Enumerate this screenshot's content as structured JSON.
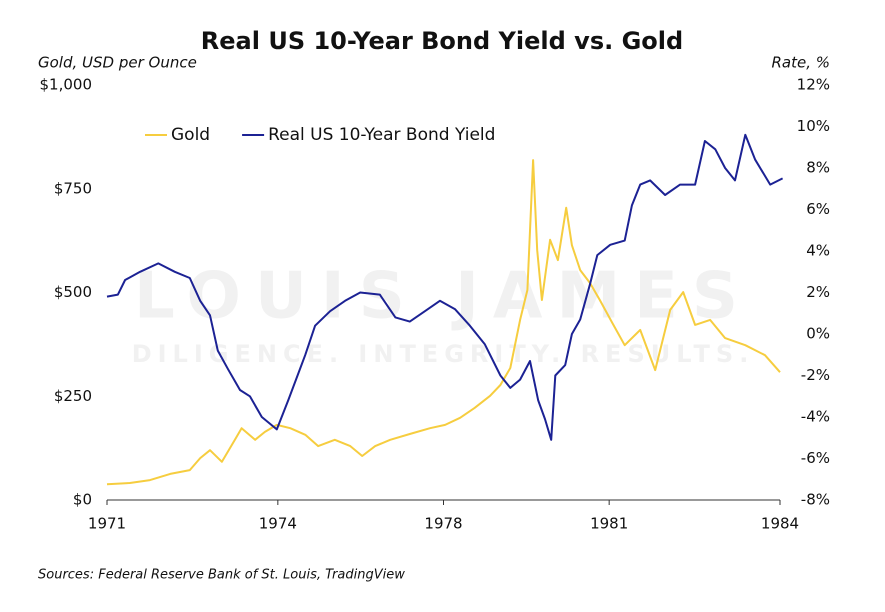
{
  "chart_data": {
    "type": "line",
    "title": "Real US 10-Year Bond Yield vs. Gold",
    "y_label": "Gold, USD per Ounce",
    "y2_label": "Rate, %",
    "source": "Sources: Federal Reserve Bank of St. Louis, TradingView",
    "watermark": {
      "name": "LOUIS JAMES",
      "motto": "DILIGENCE. INTEGRITY. RESULTS."
    },
    "xlim": [
      1971,
      1984
    ],
    "xticks": [
      {
        "value": 1971,
        "label": "1971"
      },
      {
        "value": 1974.3,
        "label": "1974"
      },
      {
        "value": 1977.5,
        "label": "1978"
      },
      {
        "value": 1980.7,
        "label": "1981"
      },
      {
        "value": 1984,
        "label": "1984"
      }
    ],
    "ylim": [
      0,
      1000
    ],
    "yticks": [
      {
        "value": 0,
        "label": "$0"
      },
      {
        "value": 250,
        "label": "$250"
      },
      {
        "value": 500,
        "label": "$500"
      },
      {
        "value": 750,
        "label": "$750"
      },
      {
        "value": 1000,
        "label": "$1,000"
      }
    ],
    "y2lim": [
      -8,
      12
    ],
    "y2ticks": [
      {
        "value": -8,
        "label": "-8%"
      },
      {
        "value": -6,
        "label": "-6%"
      },
      {
        "value": -4,
        "label": "-4%"
      },
      {
        "value": -2,
        "label": "-2%"
      },
      {
        "value": 0,
        "label": "0%"
      },
      {
        "value": 2,
        "label": "2%"
      },
      {
        "value": 4,
        "label": "4%"
      },
      {
        "value": 6,
        "label": "6%"
      },
      {
        "value": 8,
        "label": "8%"
      },
      {
        "value": 10,
        "label": "10%"
      },
      {
        "value": 12,
        "label": "12%"
      }
    ],
    "grid": false,
    "legend": "upper left",
    "series": [
      {
        "name": "Gold",
        "color": "#f6cd3f",
        "x": [
          1971.0,
          1971.44,
          1971.83,
          1972.22,
          1972.6,
          1972.8,
          1972.99,
          1973.22,
          1973.47,
          1973.6,
          1973.86,
          1974.05,
          1974.28,
          1974.54,
          1974.83,
          1975.08,
          1975.4,
          1975.7,
          1975.93,
          1976.18,
          1976.47,
          1976.85,
          1977.24,
          1977.53,
          1977.82,
          1978.1,
          1978.4,
          1978.6,
          1978.79,
          1978.98,
          1979.12,
          1979.23,
          1979.31,
          1979.4,
          1979.56,
          1979.71,
          1979.87,
          1979.98,
          1980.14,
          1980.33,
          1980.52,
          1980.75,
          1981.0,
          1981.3,
          1981.59,
          1981.88,
          1982.13,
          1982.36,
          1982.65,
          1982.94,
          1983.33,
          1983.71,
          1984.0
        ],
        "values": [
          38,
          41,
          48,
          63,
          72,
          101,
          120,
          92,
          145,
          173,
          145,
          164,
          181,
          173,
          157,
          130,
          145,
          130,
          106,
          130,
          145,
          159,
          173,
          181,
          198,
          222,
          251,
          277,
          318,
          434,
          506,
          819,
          602,
          482,
          627,
          578,
          704,
          614,
          554,
          523,
          482,
          429,
          373,
          410,
          313,
          458,
          501,
          422,
          434,
          390,
          373,
          349,
          308
        ]
      },
      {
        "name": "Real US 10-Year Bond Yield",
        "color": "#1c2294",
        "axis": "y2",
        "x": [
          1971.0,
          1971.21,
          1971.35,
          1971.64,
          1971.99,
          1972.31,
          1972.6,
          1972.8,
          1972.99,
          1973.14,
          1973.34,
          1973.57,
          1973.76,
          1973.99,
          1974.28,
          1974.5,
          1974.65,
          1974.83,
          1975.02,
          1975.31,
          1975.6,
          1975.89,
          1976.27,
          1976.57,
          1976.85,
          1977.14,
          1977.43,
          1977.72,
          1978.01,
          1978.3,
          1978.6,
          1978.79,
          1978.98,
          1979.17,
          1979.33,
          1979.46,
          1979.58,
          1979.66,
          1979.85,
          1979.98,
          1980.14,
          1980.33,
          1980.47,
          1980.72,
          1981.0,
          1981.14,
          1981.3,
          1981.49,
          1981.78,
          1982.07,
          1982.36,
          1982.55,
          1982.75,
          1982.94,
          1983.13,
          1983.33,
          1983.52,
          1983.81,
          1984.05
        ],
        "values": [
          1.8,
          1.9,
          2.6,
          3.0,
          3.4,
          3.0,
          2.7,
          1.6,
          0.9,
          -0.8,
          -1.7,
          -2.7,
          -3.0,
          -4.0,
          -4.6,
          -3.2,
          -2.2,
          -1.0,
          0.4,
          1.1,
          1.6,
          2.0,
          1.9,
          0.8,
          0.6,
          1.1,
          1.6,
          1.2,
          0.4,
          -0.5,
          -2.0,
          -2.6,
          -2.2,
          -1.3,
          -3.2,
          -4.1,
          -5.1,
          -2.0,
          -1.5,
          0.0,
          0.7,
          2.4,
          3.8,
          4.3,
          4.5,
          6.2,
          7.2,
          7.4,
          6.7,
          7.2,
          7.2,
          9.3,
          8.9,
          8.0,
          7.4,
          9.6,
          8.4,
          7.2,
          7.5
        ]
      }
    ]
  }
}
